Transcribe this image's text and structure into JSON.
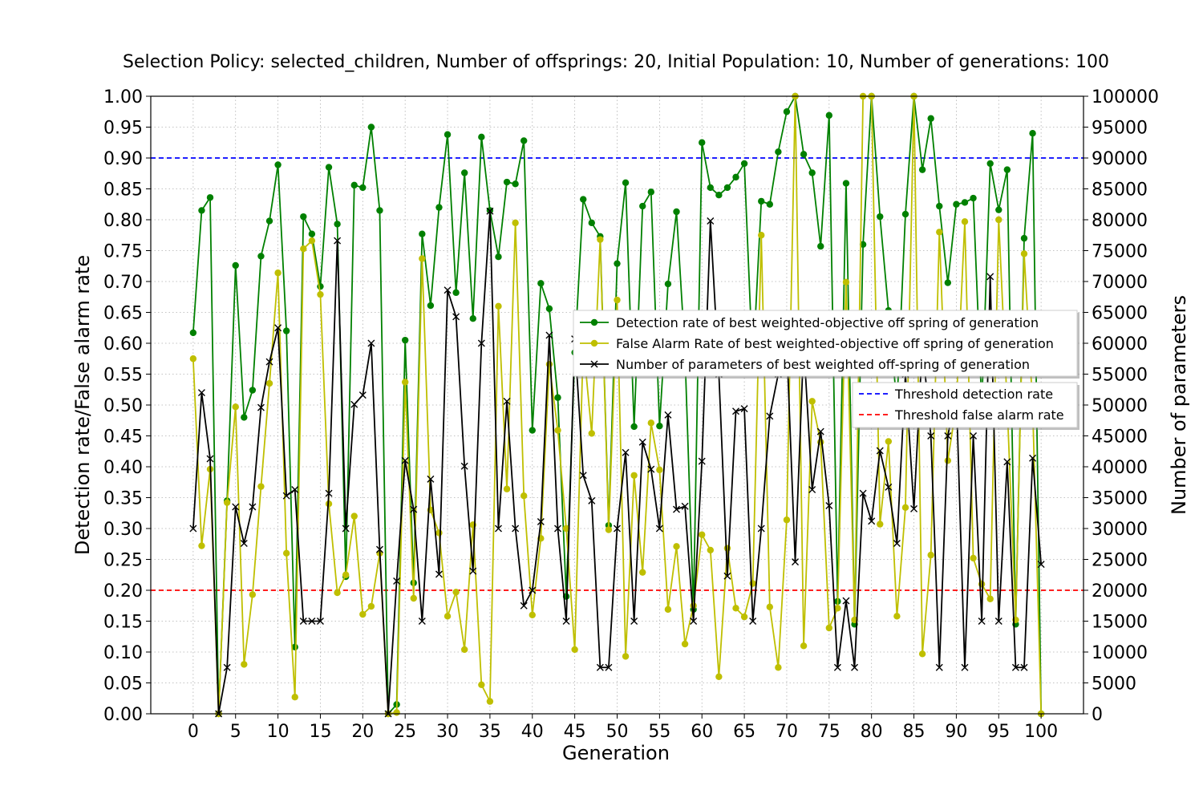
{
  "chart_data": {
    "type": "line",
    "title": "Selection Policy: selected_children, Number of offsprings: 20, Initial Population: 10, Number of generations: 100",
    "xlabel": "Generation",
    "ylabel": "Detection rate/False alarm rate",
    "ylabel_right": "Number of parameters",
    "xlim": [
      -5,
      105
    ],
    "ylim": [
      0,
      1
    ],
    "ylim_right": [
      0,
      100000
    ],
    "x_ticks": [
      "0",
      "5",
      "10",
      "15",
      "20",
      "25",
      "30",
      "35",
      "40",
      "45",
      "50",
      "55",
      "60",
      "65",
      "70",
      "75",
      "80",
      "85",
      "90",
      "95",
      "100"
    ],
    "y_ticks": [
      "0.00",
      "0.05",
      "0.10",
      "0.15",
      "0.20",
      "0.25",
      "0.30",
      "0.35",
      "0.40",
      "0.45",
      "0.50",
      "0.55",
      "0.60",
      "0.65",
      "0.70",
      "0.75",
      "0.80",
      "0.85",
      "0.90",
      "0.95",
      "1.00"
    ],
    "y_ticks_right": [
      "0",
      "5000",
      "10000",
      "15000",
      "20000",
      "25000",
      "30000",
      "35000",
      "40000",
      "45000",
      "50000",
      "55000",
      "60000",
      "65000",
      "70000",
      "75000",
      "80000",
      "85000",
      "90000",
      "95000",
      "100000"
    ],
    "grid": true,
    "x": [
      0,
      1,
      2,
      3,
      4,
      5,
      6,
      7,
      8,
      9,
      10,
      11,
      12,
      13,
      14,
      15,
      16,
      17,
      18,
      19,
      20,
      21,
      22,
      23,
      24,
      25,
      26,
      27,
      28,
      29,
      30,
      31,
      32,
      33,
      34,
      35,
      36,
      37,
      38,
      39,
      40,
      41,
      42,
      43,
      44,
      45,
      46,
      47,
      48,
      49,
      50,
      51,
      52,
      53,
      54,
      55,
      56,
      57,
      58,
      59,
      60,
      61,
      62,
      63,
      64,
      65,
      66,
      67,
      68,
      69,
      70,
      71,
      72,
      73,
      74,
      75,
      76,
      77,
      78,
      79,
      80,
      81,
      82,
      83,
      84,
      85,
      86,
      87,
      88,
      89,
      90,
      91,
      92,
      93,
      94,
      95,
      96,
      97,
      98,
      99,
      100
    ],
    "series": [
      {
        "name": "Detection rate of best weighted-objective off spring of generation",
        "axis": "left",
        "color": "#008000",
        "marker": "circle",
        "values": [
          0.617,
          0.815,
          0.836,
          0.0,
          0.345,
          0.726,
          0.48,
          0.524,
          0.741,
          0.798,
          0.889,
          0.62,
          0.108,
          0.805,
          0.777,
          0.692,
          0.885,
          0.793,
          0.222,
          0.856,
          0.852,
          0.95,
          0.815,
          0.0,
          0.015,
          0.605,
          0.212,
          0.777,
          0.661,
          0.82,
          0.938,
          0.682,
          0.876,
          0.64,
          0.934,
          0.815,
          0.74,
          0.861,
          0.858,
          0.928,
          0.459,
          0.697,
          0.656,
          0.512,
          0.19,
          0.585,
          0.833,
          0.795,
          0.773,
          0.305,
          0.729,
          0.86,
          0.465,
          0.822,
          0.845,
          0.466,
          0.696,
          0.813,
          0.585,
          0.169,
          0.925,
          0.852,
          0.84,
          0.852,
          0.869,
          0.891,
          0.56,
          0.83,
          0.825,
          0.91,
          0.975,
          1.0,
          0.906,
          0.876,
          0.757,
          0.969,
          0.182,
          0.859,
          0.145,
          0.76,
          1.0,
          0.805,
          0.653,
          0.5,
          0.809,
          1.0,
          0.881,
          0.964,
          0.822,
          0.698,
          0.825,
          0.828,
          0.835,
          0.5,
          0.891,
          0.816,
          0.881,
          0.145,
          0.77,
          0.94,
          0.0
        ]
      },
      {
        "name": "False Alarm Rate of best weighted-objective off spring of generation",
        "axis": "left",
        "color": "#bfbf00",
        "marker": "circle",
        "values": [
          0.575,
          0.272,
          0.396,
          0.0,
          0.342,
          0.497,
          0.08,
          0.193,
          0.368,
          0.535,
          0.714,
          0.26,
          0.027,
          0.753,
          0.766,
          0.679,
          0.34,
          0.196,
          0.225,
          0.32,
          0.161,
          0.174,
          0.26,
          0.0,
          0.002,
          0.537,
          0.187,
          0.737,
          0.33,
          0.293,
          0.158,
          0.197,
          0.104,
          0.306,
          0.047,
          0.02,
          0.66,
          0.364,
          0.795,
          0.353,
          0.16,
          0.284,
          0.566,
          0.459,
          0.3,
          0.104,
          0.6,
          0.454,
          0.768,
          0.298,
          0.67,
          0.093,
          0.386,
          0.229,
          0.471,
          0.395,
          0.169,
          0.271,
          0.113,
          0.175,
          0.29,
          0.265,
          0.06,
          0.268,
          0.171,
          0.157,
          0.211,
          0.775,
          0.173,
          0.075,
          0.314,
          1.0,
          0.11,
          0.506,
          0.44,
          0.139,
          0.171,
          0.699,
          0.152,
          1.0,
          1.0,
          0.307,
          0.441,
          0.158,
          0.334,
          1.0,
          0.097,
          0.257,
          0.78,
          0.41,
          0.5,
          0.797,
          0.252,
          0.21,
          0.186,
          0.8,
          0.5,
          0.152,
          0.745,
          0.5,
          0.0
        ]
      },
      {
        "name": "Number of parameters of best weighted off-spring of generation",
        "axis": "right",
        "color": "#000000",
        "marker": "x",
        "values": [
          30000,
          52000,
          41300,
          0,
          7500,
          33500,
          27600,
          33500,
          49600,
          57000,
          62500,
          35300,
          36300,
          15000,
          15000,
          15000,
          35700,
          76600,
          30000,
          50100,
          51600,
          60000,
          26600,
          0,
          21500,
          41000,
          33100,
          15000,
          38000,
          22600,
          68600,
          64300,
          40100,
          23100,
          60000,
          81400,
          30000,
          50600,
          30000,
          17500,
          20000,
          31100,
          61300,
          30000,
          15000,
          60700,
          38600,
          34500,
          7500,
          7500,
          30000,
          42300,
          15000,
          44000,
          39600,
          30000,
          48400,
          33100,
          33600,
          15000,
          40900,
          79800,
          55000,
          22300,
          49000,
          49400,
          15000,
          30000,
          48200,
          55000,
          60000,
          24600,
          60000,
          36300,
          45700,
          33700,
          7500,
          18300,
          7500,
          35700,
          31200,
          42600,
          36700,
          27600,
          55000,
          33200,
          60000,
          45000,
          7500,
          45000,
          52000,
          7500,
          45000,
          15000,
          70800,
          15000,
          40800,
          7500,
          7500,
          41400,
          24200
        ]
      }
    ],
    "thresholds": [
      {
        "name": "Threshold detection rate",
        "value": 0.9,
        "color": "#0000ff",
        "style": "dashed"
      },
      {
        "name": "Threshold false alarm rate",
        "value": 0.2,
        "color": "#ff0000",
        "style": "dashed"
      }
    ],
    "legend_placement": "center-right"
  }
}
